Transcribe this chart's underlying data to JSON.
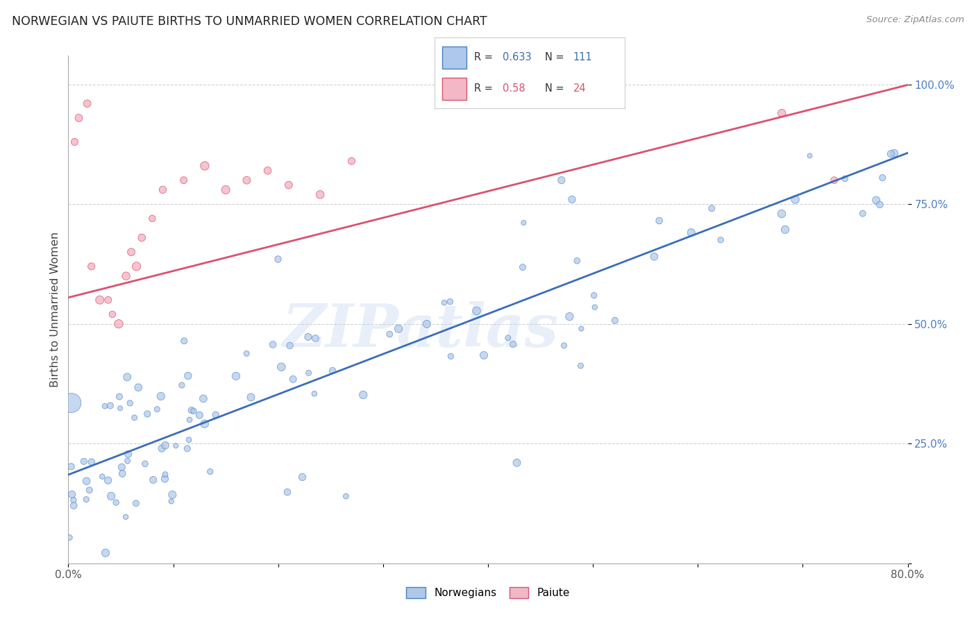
{
  "title": "NORWEGIAN VS PAIUTE BIRTHS TO UNMARRIED WOMEN CORRELATION CHART",
  "source": "Source: ZipAtlas.com",
  "ylabel": "Births to Unmarried Women",
  "xlim": [
    0.0,
    0.8
  ],
  "ylim": [
    0.0,
    1.06
  ],
  "norwegian_R": 0.633,
  "norwegian_N": 111,
  "paiute_R": 0.58,
  "paiute_N": 24,
  "norwegian_fill": "#adc8ea",
  "paiute_fill": "#f2b8c6",
  "norwegian_edge": "#4a7fc1",
  "paiute_edge": "#d9526e",
  "nor_line_color": "#3a6db5",
  "pai_line_color": "#d9526e",
  "nor_intercept": 0.185,
  "nor_slope": 0.84,
  "pai_intercept": 0.555,
  "pai_slope": 0.555,
  "watermark": "ZIPatlas",
  "ytick_color": "#4a7fc1",
  "grid_color": "#cccccc"
}
